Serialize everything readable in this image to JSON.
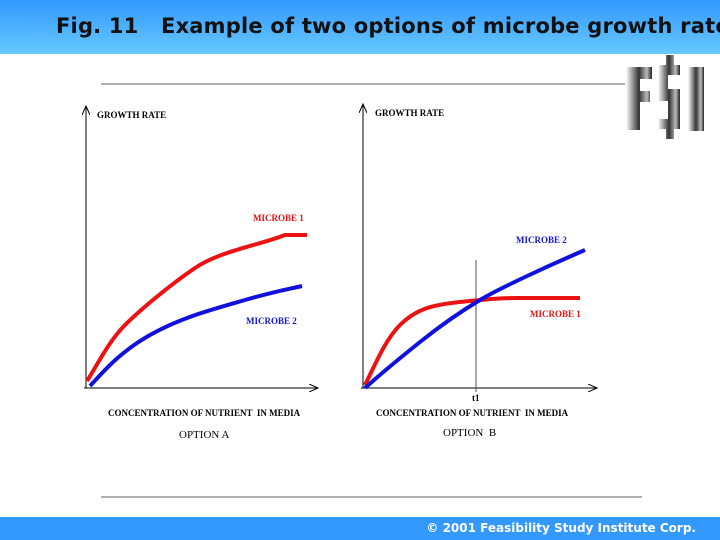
{
  "header": {
    "title": "Fig. 11   Example of two options of microbe growth rate"
  },
  "footer": {
    "copyright": "© 2001 Feasibility Study Institute Corp."
  },
  "logo": {
    "text": "FSI"
  },
  "colors": {
    "microbe1": "#ee1111",
    "microbe2": "#1111dd",
    "header": "#3399ff"
  },
  "option_a": {
    "y_label": "GROWTH RATE",
    "x_label": "CONCENTRATION OF NUTRIENT  IN MEDIA",
    "caption": "OPTION A",
    "series": [
      "MICROBE 1",
      "MICROBE 2"
    ]
  },
  "option_b": {
    "y_label": "GROWTH RATE",
    "x_label": "CONCENTRATION OF NUTRIENT  IN MEDIA",
    "caption": "OPTION  B",
    "series": [
      "MICROBE 2",
      "MICROBE 1"
    ],
    "marker": "t1"
  }
}
